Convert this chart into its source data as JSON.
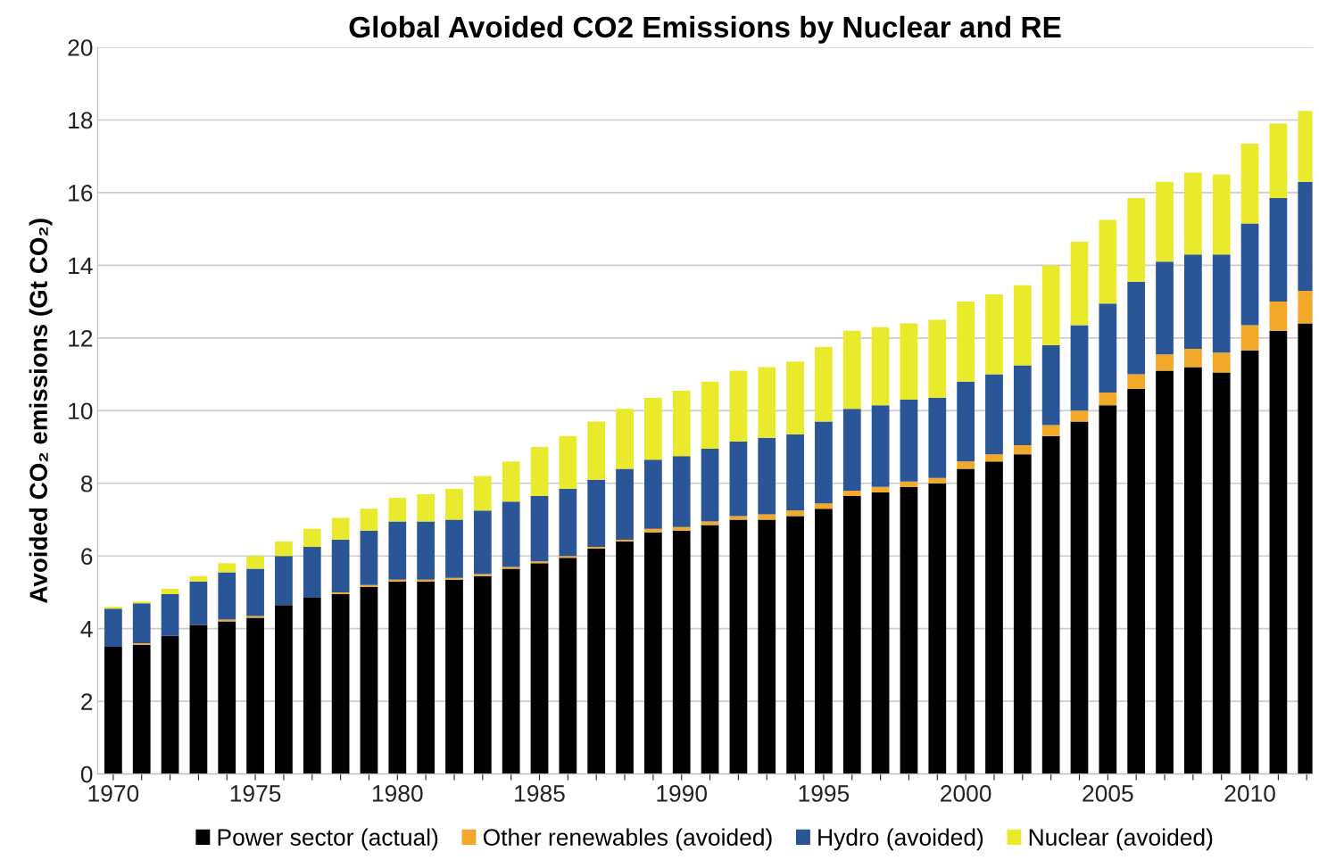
{
  "chart_data": {
    "type": "bar",
    "stacked": true,
    "title": "Global Avoided CO2 Emissions by Nuclear and RE",
    "ylabel": "Avoided CO₂ emissions (Gt CO₂)",
    "categories": [
      "1970",
      null,
      null,
      null,
      null,
      "1975",
      null,
      null,
      null,
      null,
      "1980",
      null,
      null,
      null,
      null,
      "1985",
      null,
      null,
      null,
      null,
      "1990",
      null,
      null,
      null,
      null,
      "1995",
      null,
      null,
      null,
      null,
      "2000",
      null,
      null,
      null,
      null,
      "2005",
      null,
      null,
      null,
      null,
      "2010",
      null,
      null
    ],
    "series": [
      {
        "name": "Power sector (actual)",
        "color": "#000000",
        "values": [
          3.5,
          3.55,
          3.8,
          4.1,
          4.2,
          4.3,
          4.65,
          4.85,
          4.95,
          5.15,
          5.3,
          5.3,
          5.35,
          5.45,
          5.65,
          5.8,
          5.95,
          6.2,
          6.4,
          6.65,
          6.7,
          6.85,
          7.0,
          7.0,
          7.1,
          7.3,
          7.65,
          7.75,
          7.9,
          8.0,
          8.4,
          8.6,
          8.8,
          9.3,
          9.7,
          10.15,
          10.6,
          11.1,
          11.2,
          11.05,
          11.65,
          12.2,
          12.4
        ]
      },
      {
        "name": "Other renewables (avoided)",
        "color": "#f2a92a",
        "values": [
          0,
          0.05,
          0,
          0,
          0.05,
          0.05,
          0,
          0,
          0.05,
          0.05,
          0.05,
          0.05,
          0.05,
          0.05,
          0.05,
          0.05,
          0.05,
          0.05,
          0.05,
          0.1,
          0.1,
          0.1,
          0.1,
          0.15,
          0.15,
          0.15,
          0.15,
          0.15,
          0.15,
          0.15,
          0.2,
          0.2,
          0.25,
          0.3,
          0.3,
          0.35,
          0.4,
          0.45,
          0.5,
          0.55,
          0.7,
          0.8,
          0.9
        ]
      },
      {
        "name": "Hydro (avoided)",
        "color": "#2a5597",
        "values": [
          1.05,
          1.1,
          1.15,
          1.2,
          1.3,
          1.3,
          1.35,
          1.4,
          1.45,
          1.5,
          1.6,
          1.6,
          1.6,
          1.75,
          1.8,
          1.8,
          1.85,
          1.85,
          1.95,
          1.9,
          1.95,
          2.0,
          2.05,
          2.1,
          2.1,
          2.25,
          2.25,
          2.25,
          2.25,
          2.2,
          2.2,
          2.2,
          2.2,
          2.2,
          2.35,
          2.45,
          2.55,
          2.55,
          2.6,
          2.7,
          2.8,
          2.85,
          3.0
        ]
      },
      {
        "name": "Nuclear (avoided)",
        "color": "#eaea2c",
        "values": [
          0.05,
          0.05,
          0.15,
          0.15,
          0.25,
          0.35,
          0.4,
          0.5,
          0.6,
          0.6,
          0.65,
          0.75,
          0.85,
          0.95,
          1.1,
          1.35,
          1.45,
          1.6,
          1.65,
          1.7,
          1.8,
          1.85,
          1.95,
          1.95,
          2.0,
          2.05,
          2.15,
          2.15,
          2.1,
          2.15,
          2.2,
          2.2,
          2.2,
          2.2,
          2.3,
          2.3,
          2.3,
          2.2,
          2.25,
          2.2,
          2.2,
          2.05,
          1.95
        ]
      }
    ],
    "ylim": [
      0,
      20
    ],
    "yticks": [
      0,
      2,
      4,
      6,
      8,
      10,
      12,
      14,
      16,
      18,
      20
    ],
    "grid": "y",
    "legend": "bottom"
  }
}
